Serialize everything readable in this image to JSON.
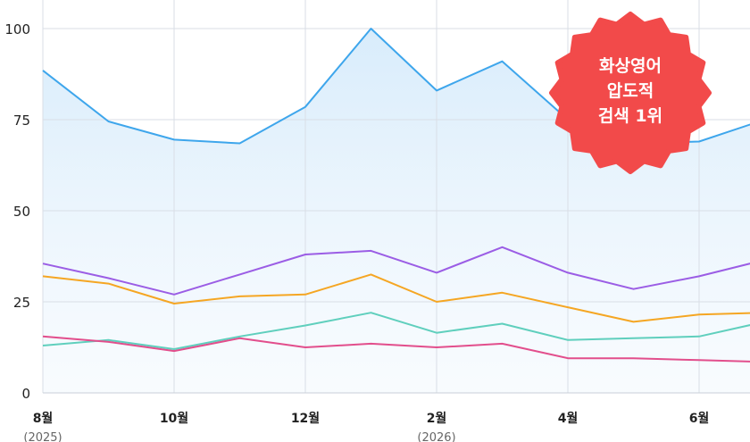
{
  "chart_data": {
    "type": "line",
    "x": [
      "2025-08",
      "2025-09",
      "2025-10",
      "2025-11",
      "2025-12",
      "2026-01",
      "2026-02",
      "2026-03",
      "2026-04",
      "2026-05",
      "2026-06",
      "2026-07"
    ],
    "x_tick_labels": [
      {
        "month": "2025-08",
        "label": "8월",
        "sub": "(2025)"
      },
      {
        "month": "2025-10",
        "label": "10월",
        "sub": ""
      },
      {
        "month": "2025-12",
        "label": "12월",
        "sub": ""
      },
      {
        "month": "2026-02",
        "label": "2월",
        "sub": "(2026)"
      },
      {
        "month": "2026-04",
        "label": "4월",
        "sub": ""
      },
      {
        "month": "2026-06",
        "label": "6월",
        "sub": ""
      }
    ],
    "y_ticks": [
      "0",
      "25",
      "50",
      "75",
      "100"
    ],
    "ylim": [
      0,
      100
    ],
    "grid": true,
    "series": [
      {
        "color": "#3ea6ec",
        "area": true,
        "values": [
          88.5,
          74.5,
          69.5,
          68.5,
          78.5,
          100,
          83,
          91,
          75,
          68.5,
          69,
          75
        ]
      },
      {
        "color": "#9b5de5",
        "values": [
          35.5,
          31.5,
          27,
          32.5,
          38,
          39,
          33,
          40,
          33,
          28.5,
          32,
          36.5
        ]
      },
      {
        "color": "#f5a623",
        "values": [
          32,
          30,
          24.5,
          26.5,
          27,
          32.5,
          25,
          27.5,
          23.5,
          19.5,
          21.5,
          22
        ]
      },
      {
        "color": "#5fcfbd",
        "values": [
          13,
          14.5,
          12,
          15.5,
          18.5,
          22,
          16.5,
          19,
          14.5,
          15,
          15.5,
          19.5
        ]
      },
      {
        "color": "#e24e8c",
        "values": [
          15.5,
          14,
          11.5,
          15,
          12.5,
          13.5,
          12.5,
          13.5,
          9.5,
          9.5,
          9,
          8.5
        ]
      }
    ]
  },
  "badge": {
    "line1": "화상영어",
    "line2": "압도적",
    "line3": "검색 1위",
    "color": "#f24a4a"
  }
}
